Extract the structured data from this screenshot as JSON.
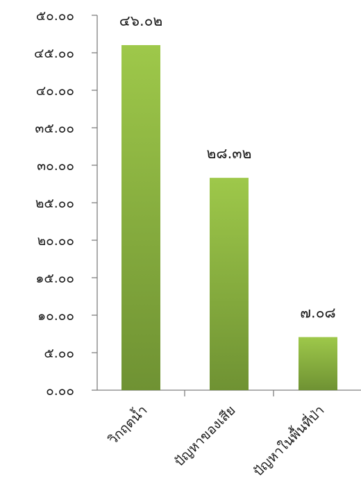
{
  "chart_data": {
    "type": "bar",
    "categories": [
      "วิกฤตน้ำ",
      "ปัญหาของเสีย",
      "ปัญหาในพื้นที่ป่า"
    ],
    "values": [
      46.02,
      28.32,
      7.08
    ],
    "value_labels": [
      "๔๖.๐๒",
      "๒๘.๓๒",
      "๗.๐๘"
    ],
    "y_tick_values": [
      0,
      5,
      10,
      15,
      20,
      25,
      30,
      35,
      40,
      45,
      50
    ],
    "y_tick_labels": [
      "๐.๐๐",
      "๕.๐๐",
      "๑๐.๐๐",
      "๑๕.๐๐",
      "๒๐.๐๐",
      "๒๕.๐๐",
      "๓๐.๐๐",
      "๓๕.๐๐",
      "๔๐.๐๐",
      "๔๕.๐๐",
      "๕๐.๐๐"
    ],
    "ylim": [
      0,
      50
    ],
    "grid": false,
    "legend": "none",
    "bar_color_top": "#9ec84a",
    "bar_color_bottom": "#6f9233",
    "axis_color": "#7f7f7f"
  }
}
